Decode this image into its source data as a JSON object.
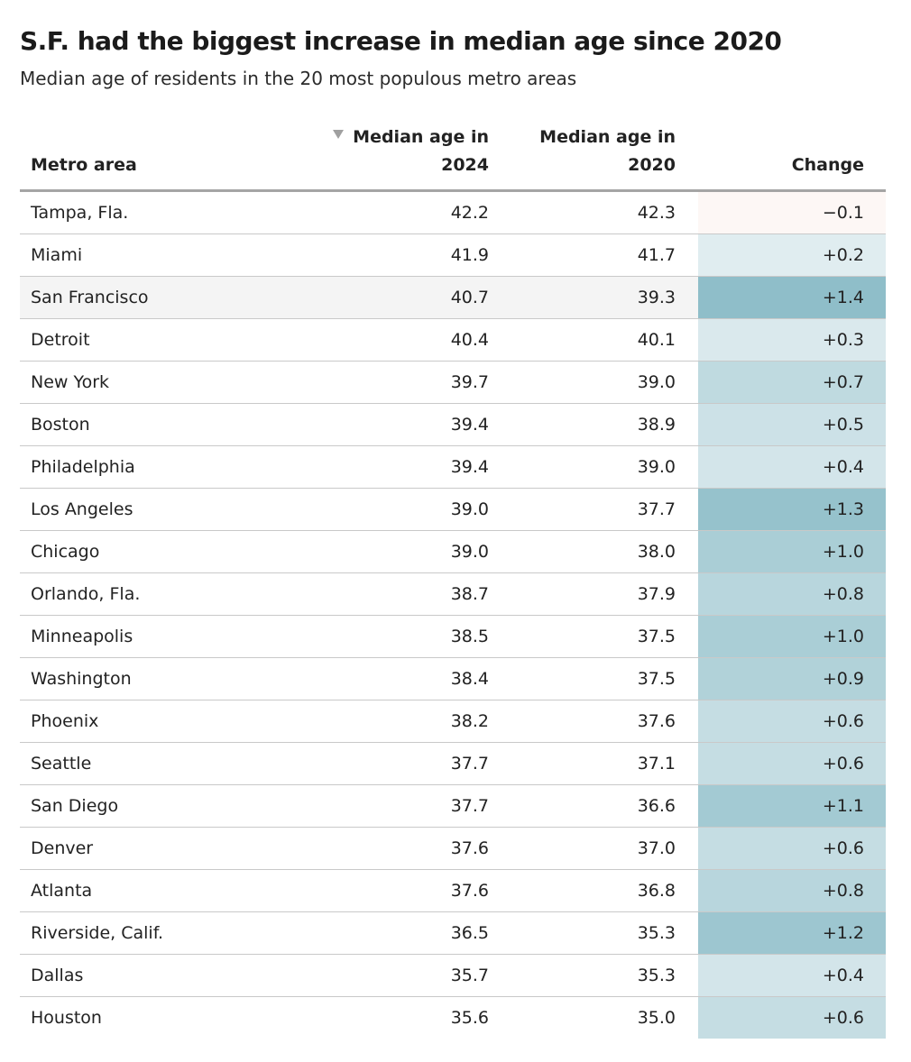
{
  "title": "S.F. had the biggest increase in median age since 2020",
  "subtitle": "Median age of residents in the 20 most populous metro areas",
  "colors": {
    "change_positive_max": "#8fbec9",
    "change_positive_min": "#eef5f7",
    "change_negative": "#fdf7f5",
    "highlight_row": "#f4f4f4",
    "header_rule": "#a5a5a5",
    "row_rule": "#c9c9c9"
  },
  "chart_data": {
    "type": "table",
    "columns": {
      "metro": "Metro area",
      "age_2024": "Median age in 2024",
      "age_2020": "Median age in 2020",
      "change": "Change"
    },
    "header_lines": {
      "age_2024": [
        "Median age in",
        "2024"
      ],
      "age_2020": [
        "Median age in",
        "2020"
      ]
    },
    "sorted_by": "age_2024",
    "sort_direction": "descending",
    "sort_icon": "sort-descending-triangle-icon",
    "highlighted_metro": "San Francisco",
    "rows": [
      {
        "metro": "Tampa, Fla.",
        "age_2024": "42.2",
        "age_2020": "42.3",
        "change": "−0.1",
        "change_value": -0.1
      },
      {
        "metro": "Miami",
        "age_2024": "41.9",
        "age_2020": "41.7",
        "change": "+0.2",
        "change_value": 0.2
      },
      {
        "metro": "San Francisco",
        "age_2024": "40.7",
        "age_2020": "39.3",
        "change": "+1.4",
        "change_value": 1.4
      },
      {
        "metro": "Detroit",
        "age_2024": "40.4",
        "age_2020": "40.1",
        "change": "+0.3",
        "change_value": 0.3
      },
      {
        "metro": "New York",
        "age_2024": "39.7",
        "age_2020": "39.0",
        "change": "+0.7",
        "change_value": 0.7
      },
      {
        "metro": "Boston",
        "age_2024": "39.4",
        "age_2020": "38.9",
        "change": "+0.5",
        "change_value": 0.5
      },
      {
        "metro": "Philadelphia",
        "age_2024": "39.4",
        "age_2020": "39.0",
        "change": "+0.4",
        "change_value": 0.4
      },
      {
        "metro": "Los Angeles",
        "age_2024": "39.0",
        "age_2020": "37.7",
        "change": "+1.3",
        "change_value": 1.3
      },
      {
        "metro": "Chicago",
        "age_2024": "39.0",
        "age_2020": "38.0",
        "change": "+1.0",
        "change_value": 1.0
      },
      {
        "metro": "Orlando, Fla.",
        "age_2024": "38.7",
        "age_2020": "37.9",
        "change": "+0.8",
        "change_value": 0.8
      },
      {
        "metro": "Minneapolis",
        "age_2024": "38.5",
        "age_2020": "37.5",
        "change": "+1.0",
        "change_value": 1.0
      },
      {
        "metro": "Washington",
        "age_2024": "38.4",
        "age_2020": "37.5",
        "change": "+0.9",
        "change_value": 0.9
      },
      {
        "metro": "Phoenix",
        "age_2024": "38.2",
        "age_2020": "37.6",
        "change": "+0.6",
        "change_value": 0.6
      },
      {
        "metro": "Seattle",
        "age_2024": "37.7",
        "age_2020": "37.1",
        "change": "+0.6",
        "change_value": 0.6
      },
      {
        "metro": "San Diego",
        "age_2024": "37.7",
        "age_2020": "36.6",
        "change": "+1.1",
        "change_value": 1.1
      },
      {
        "metro": "Denver",
        "age_2024": "37.6",
        "age_2020": "37.0",
        "change": "+0.6",
        "change_value": 0.6
      },
      {
        "metro": "Atlanta",
        "age_2024": "37.6",
        "age_2020": "36.8",
        "change": "+0.8",
        "change_value": 0.8
      },
      {
        "metro": "Riverside, Calif.",
        "age_2024": "36.5",
        "age_2020": "35.3",
        "change": "+1.2",
        "change_value": 1.2
      },
      {
        "metro": "Dallas",
        "age_2024": "35.7",
        "age_2020": "35.3",
        "change": "+0.4",
        "change_value": 0.4
      },
      {
        "metro": "Houston",
        "age_2024": "35.6",
        "age_2020": "35.0",
        "change": "+0.6",
        "change_value": 0.6
      }
    ]
  }
}
